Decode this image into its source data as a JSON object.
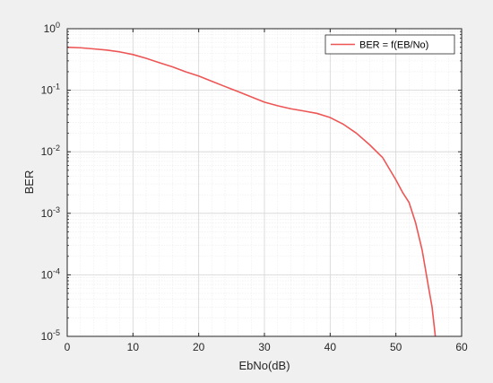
{
  "chart_data": {
    "type": "line",
    "title": "",
    "xlabel": "EbNo(dB)",
    "ylabel": "BER",
    "xlim": [
      0,
      60
    ],
    "ylim": [
      1e-05,
      1
    ],
    "yscale": "log",
    "grid": true,
    "minor_grid": true,
    "legend_position": "top-right",
    "x_ticks": [
      "0",
      "10",
      "20",
      "30",
      "40",
      "50",
      "60"
    ],
    "y_ticks": [
      {
        "base": "10",
        "exp": "0"
      },
      {
        "base": "10",
        "exp": "-1"
      },
      {
        "base": "10",
        "exp": "-2"
      },
      {
        "base": "10",
        "exp": "-3"
      },
      {
        "base": "10",
        "exp": "-4"
      },
      {
        "base": "10",
        "exp": "-5"
      }
    ],
    "series": [
      {
        "name": "BER = f(EB/No)",
        "color": "#ee5555",
        "x": [
          0,
          2,
          4,
          6,
          8,
          10,
          12,
          14,
          16,
          18,
          20,
          22,
          24,
          26,
          28,
          30,
          32,
          34,
          36,
          38,
          40,
          42,
          44,
          46,
          48,
          50,
          51,
          52,
          53,
          54,
          55,
          55.5,
          56
        ],
        "y": [
          0.5,
          0.49,
          0.47,
          0.45,
          0.42,
          0.38,
          0.33,
          0.28,
          0.24,
          0.2,
          0.17,
          0.14,
          0.115,
          0.095,
          0.078,
          0.064,
          0.056,
          0.05,
          0.046,
          0.042,
          0.036,
          0.028,
          0.02,
          0.013,
          0.008,
          0.0035,
          0.0022,
          0.0015,
          0.0007,
          0.00025,
          6e-05,
          3e-05,
          1e-05
        ]
      }
    ]
  }
}
